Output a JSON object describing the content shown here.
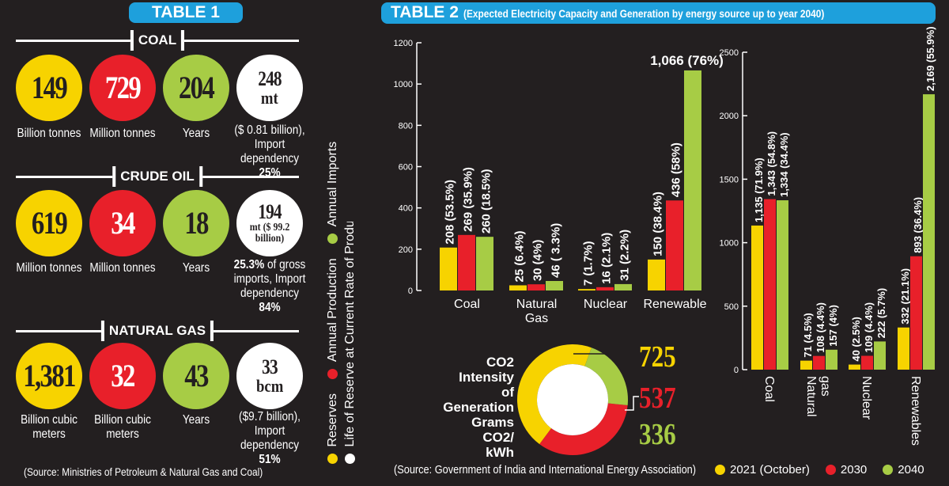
{
  "table1": {
    "title": "TABLE 1",
    "sections": [
      {
        "name": "COAL",
        "items": [
          {
            "value": "149",
            "caption": [
              {
                "t": "Billion tonnes",
                "b": false
              }
            ]
          },
          {
            "value": "729",
            "caption": [
              {
                "t": "Million tonnes",
                "b": false
              }
            ]
          },
          {
            "value": "204",
            "caption": [
              {
                "t": "Years",
                "b": false
              }
            ]
          },
          {
            "value": "248",
            "sub": "mt",
            "caption": [
              {
                "t": "($ 0.81 billion), Import dependency ",
                "b": false
              },
              {
                "t": "25%",
                "b": true
              }
            ]
          }
        ]
      },
      {
        "name": "CRUDE OIL",
        "items": [
          {
            "value": "619",
            "caption": [
              {
                "t": "Million tonnes",
                "b": false
              }
            ]
          },
          {
            "value": "34",
            "caption": [
              {
                "t": "Million tonnes",
                "b": false
              }
            ]
          },
          {
            "value": "18",
            "caption": [
              {
                "t": "Years",
                "b": false
              }
            ]
          },
          {
            "value": "194",
            "sub": "mt ($ 99.2 billion)",
            "caption": [
              {
                "t": "25.3%",
                "b": true
              },
              {
                "t": " of gross imports, Import dependency ",
                "b": false
              },
              {
                "t": "84%",
                "b": true
              }
            ]
          }
        ]
      },
      {
        "name": "NATURAL GAS",
        "items": [
          {
            "value": "1,381",
            "caption": [
              {
                "t": "Billion cubic meters",
                "b": false
              }
            ]
          },
          {
            "value": "32",
            "caption": [
              {
                "t": "Billion cubic meters",
                "b": false
              }
            ]
          },
          {
            "value": "43",
            "caption": [
              {
                "t": "Years",
                "b": false
              }
            ]
          },
          {
            "value": "33",
            "sub": "bcm",
            "caption": [
              {
                "t": "($9.7 billion), Import dependency ",
                "b": false
              },
              {
                "t": "51%",
                "b": true
              }
            ]
          }
        ]
      }
    ],
    "legend": [
      {
        "label": "Reserves",
        "color": "#f7d300"
      },
      {
        "label": "Annual Production",
        "color": "#e8202a"
      },
      {
        "label": "Annual Imports",
        "color": "#a7cc45"
      },
      {
        "label": "Life of Reserve at Current Rate of Production",
        "color": "#ffffff"
      }
    ],
    "source": "(Source: Ministries of Petroleum & Natural Gas and Coal)"
  },
  "table2": {
    "title": "TABLE 2",
    "subtitle": "(Expected Electricity Capacity and Generation by energy source up to year 2040)",
    "source": "(Source: Government of India and International Energy Association)",
    "legend": [
      {
        "label": "2021 (October)",
        "color": "#f7d300"
      },
      {
        "label": "2030",
        "color": "#e8202a"
      },
      {
        "label": "2040",
        "color": "#a7cc45"
      }
    ]
  },
  "chart_data": [
    {
      "type": "bar",
      "categories": [
        "Coal",
        "Natural Gas",
        "Nuclear",
        "Renewable"
      ],
      "ylim": [
        0,
        1200
      ],
      "yticks": [
        0,
        200,
        400,
        600,
        800,
        1000,
        1200
      ],
      "series": [
        {
          "color": "#f7d300",
          "values": [
            208,
            25,
            7,
            150
          ],
          "labels": [
            "208 (53.5%)",
            "25 (6.4%)",
            "7 (1.7%)",
            "150 (38.4%)"
          ]
        },
        {
          "color": "#e8202a",
          "values": [
            269,
            30,
            16,
            436
          ],
          "labels": [
            "269 (35.9%)",
            "30 (4%)",
            "16 (2.1%)",
            "436 (58%)"
          ]
        },
        {
          "color": "#a7cc45",
          "values": [
            260,
            46,
            31,
            1066
          ],
          "labels": [
            "260 (18.5%)",
            "46 ( 3.3%)",
            "31 (2.2%)",
            "1,066 (76%)"
          ]
        }
      ]
    },
    {
      "type": "bar",
      "categories": [
        "Coal",
        "Natural gas",
        "Nuclear",
        "Renewables"
      ],
      "ylim": [
        0,
        2500
      ],
      "yticks": [
        0,
        500,
        1000,
        1500,
        2000,
        2500
      ],
      "series": [
        {
          "color": "#f7d300",
          "values": [
            1135,
            71,
            40,
            332
          ],
          "labels": [
            "1,135 (71.9%)",
            "71 (4.5%)",
            "40 (2.5%)",
            "332 (21.1%)"
          ]
        },
        {
          "color": "#e8202a",
          "values": [
            1343,
            108,
            109,
            893
          ],
          "labels": [
            "1,343 (54.8%)",
            "108 (4.4%)",
            "109 (4.4%)",
            "893 (36.4%)"
          ]
        },
        {
          "color": "#a7cc45",
          "values": [
            1334,
            157,
            222,
            2169
          ],
          "labels": [
            "1,334 (34.4%)",
            "157 (4%)",
            "222 (5.7%)",
            "2,169 (55.9%)"
          ]
        }
      ]
    },
    {
      "type": "pie",
      "title_lines": [
        "CO2",
        "Intensity of",
        "Generation",
        "Grams CO2/",
        "kWh"
      ],
      "values": [
        725,
        537,
        336
      ],
      "labels": [
        "725",
        "537",
        "336"
      ],
      "colors": [
        "#f7d300",
        "#e8202a",
        "#a7cc45"
      ]
    }
  ]
}
